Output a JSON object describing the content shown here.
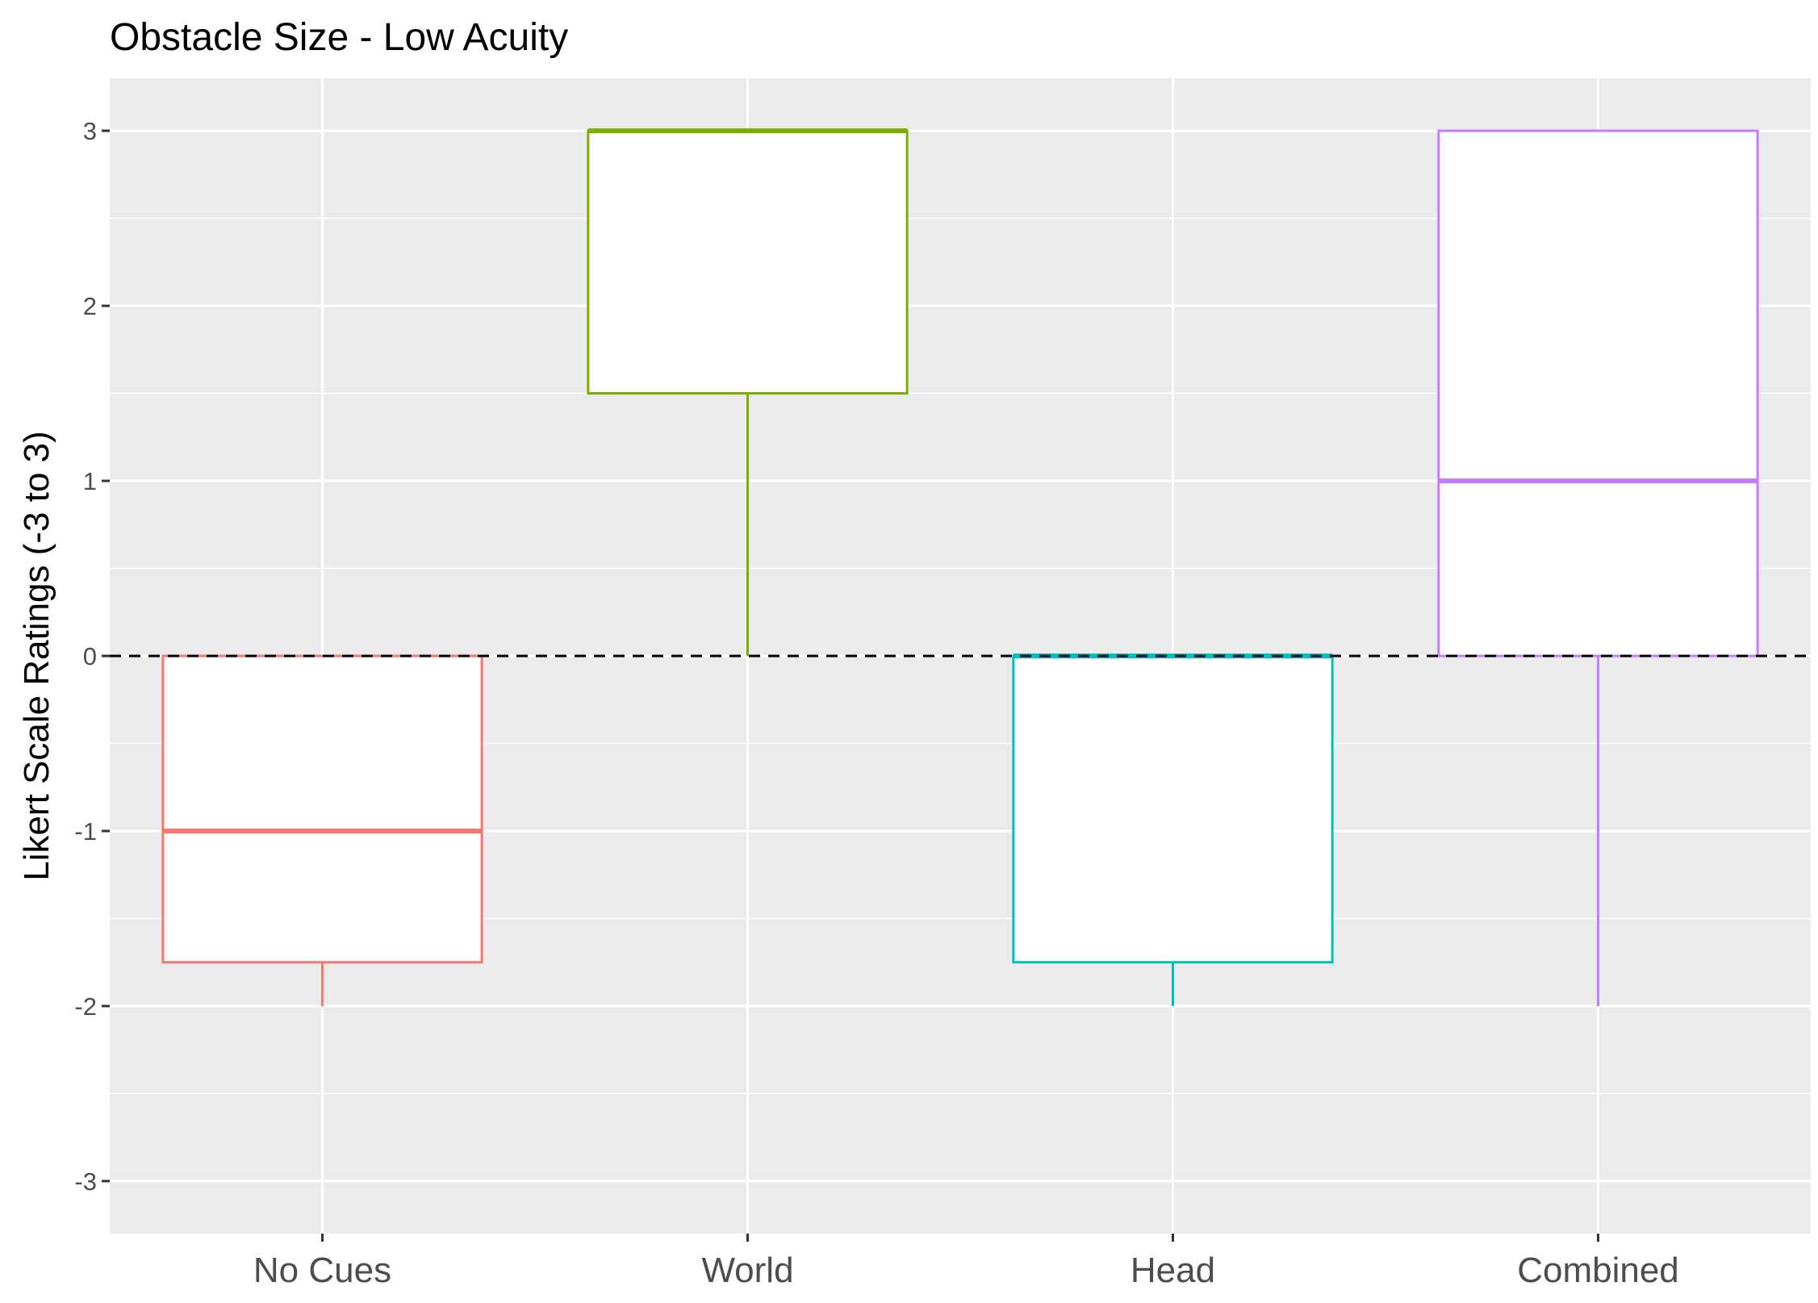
{
  "chart_data": {
    "type": "boxplot",
    "title": "Obstacle Size - Low Acuity",
    "xlabel": "",
    "ylabel": "Likert Scale Ratings (-3 to 3)",
    "ylim": [
      -3.3,
      3.3
    ],
    "yticks": [
      3,
      2,
      1,
      0,
      -1,
      -2,
      -3
    ],
    "ytick_labels": [
      "3",
      "2",
      "1",
      "0",
      "-1",
      "-2",
      "-3"
    ],
    "categories": [
      "No Cues",
      "World",
      "Head",
      "Combined"
    ],
    "reference_line": {
      "y": 0,
      "style": "dashed"
    },
    "grid": true,
    "legend": "none",
    "background": "#ebebeb",
    "boxes": [
      {
        "category": "No Cues",
        "color": "#F8766D",
        "min": -2,
        "q1": -1.75,
        "median": -1,
        "q3": 0,
        "max": 0
      },
      {
        "category": "World",
        "color": "#7CAE00",
        "min": 0,
        "q1": 1.5,
        "median": 3,
        "q3": 3,
        "max": 3
      },
      {
        "category": "Head",
        "color": "#00BFC4",
        "min": -2,
        "q1": -1.75,
        "median": 0,
        "q3": 0,
        "max": 0
      },
      {
        "category": "Combined",
        "color": "#C77CFF",
        "min": -2,
        "q1": 0,
        "median": 1,
        "q3": 3,
        "max": 3
      }
    ]
  }
}
